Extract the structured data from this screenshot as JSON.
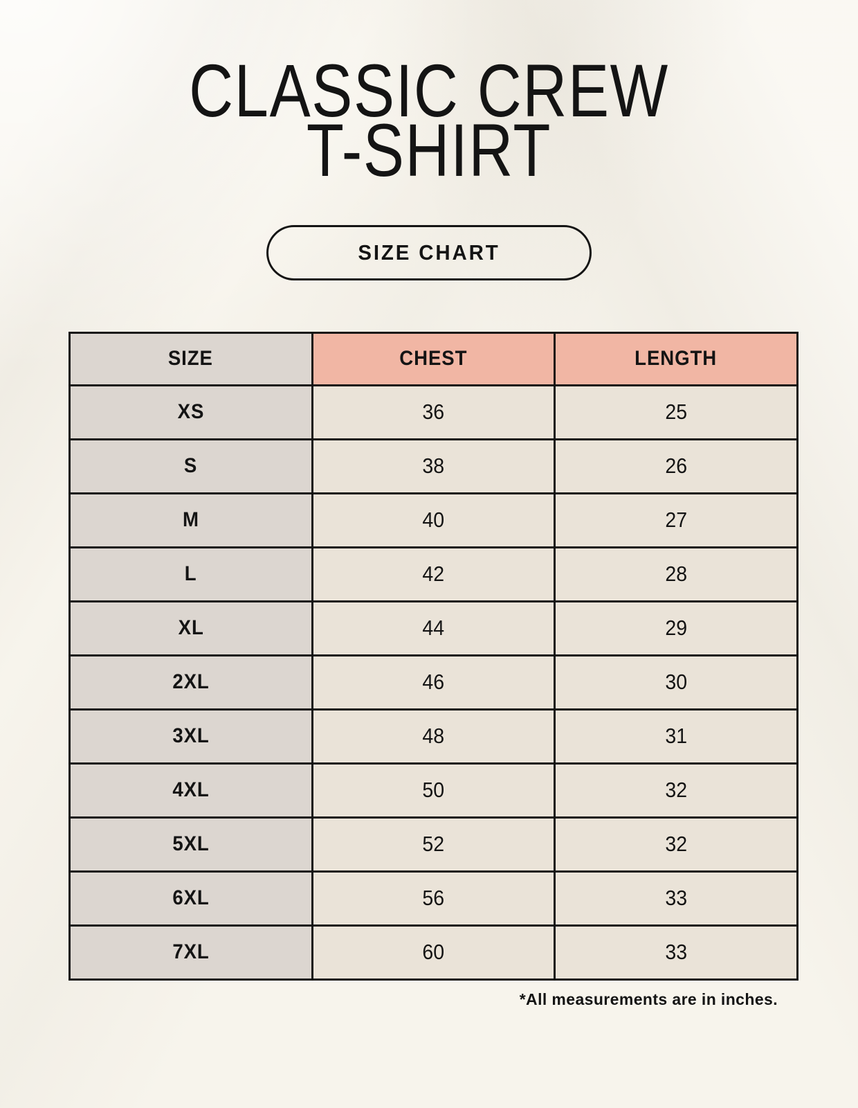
{
  "header": {
    "title_line1": "CLASSIC CREW",
    "title_line2": "T-SHIRT",
    "badge_label": "SIZE CHART"
  },
  "footer": {
    "note": "*All measurements are in inches."
  },
  "colors": {
    "page_bg": "#f7f4ec",
    "size_col_bg": "#dcd6d0",
    "accent_header_bg": "#f1b6a4",
    "cell_bg": "#eae3d8",
    "border": "#141414",
    "text": "#141414"
  },
  "chart_data": {
    "type": "table",
    "title": "CLASSIC CREW T-SHIRT",
    "subtitle": "SIZE CHART",
    "columns": [
      "SIZE",
      "CHEST",
      "LENGTH"
    ],
    "rows": [
      [
        "XS",
        "36",
        "25"
      ],
      [
        "S",
        "38",
        "26"
      ],
      [
        "M",
        "40",
        "27"
      ],
      [
        "L",
        "42",
        "28"
      ],
      [
        "XL",
        "44",
        "29"
      ],
      [
        "2XL",
        "46",
        "30"
      ],
      [
        "3XL",
        "48",
        "31"
      ],
      [
        "4XL",
        "50",
        "32"
      ],
      [
        "5XL",
        "52",
        "32"
      ],
      [
        "6XL",
        "56",
        "33"
      ],
      [
        "7XL",
        "60",
        "33"
      ]
    ],
    "units": "inches",
    "layout": {
      "accent_columns": [
        "CHEST",
        "LENGTH"
      ],
      "shaded_column": "SIZE",
      "grid": true
    }
  }
}
